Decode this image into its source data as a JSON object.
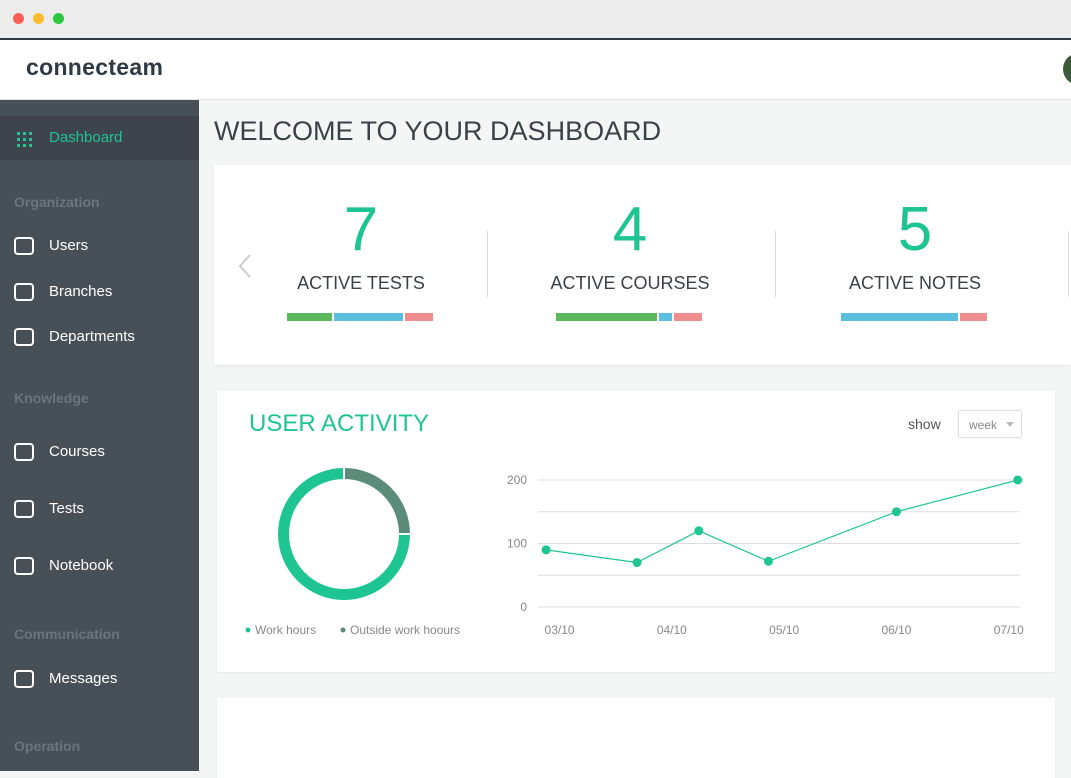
{
  "logo": "connecteam",
  "sidebar": {
    "items": [
      {
        "kind": "item",
        "label": "Dashboard",
        "active": true
      },
      {
        "kind": "section",
        "label": "Organization"
      },
      {
        "kind": "item",
        "label": "Users"
      },
      {
        "kind": "item",
        "label": "Branches"
      },
      {
        "kind": "item",
        "label": "Departments"
      },
      {
        "kind": "section",
        "label": "Knowledge"
      },
      {
        "kind": "item",
        "label": "Courses"
      },
      {
        "kind": "item",
        "label": "Tests"
      },
      {
        "kind": "item",
        "label": "Notebook"
      },
      {
        "kind": "section",
        "label": "Communication"
      },
      {
        "kind": "item",
        "label": "Messages"
      },
      {
        "kind": "section",
        "label": "Operation"
      }
    ]
  },
  "page_title": "WELCOME TO YOUR DASHBOARD",
  "stats": [
    {
      "value": 7,
      "label": "ACTIVE TESTS",
      "segments": [
        46,
        69,
        29
      ]
    },
    {
      "value": 4,
      "label": "ACTIVE COURSES",
      "segments": [
        100,
        15,
        29
      ]
    },
    {
      "value": 5,
      "label": "ACTIVE NOTES",
      "segments": [
        0,
        117,
        29
      ]
    }
  ],
  "segment_colors": [
    "#5cb85c",
    "#5bc0de",
    "#f08d8d"
  ],
  "activity": {
    "title": "USER ACTIVITY",
    "show_label": "show",
    "period": "week"
  },
  "chart_data": [
    {
      "type": "pie",
      "donut": true,
      "categories": [
        "Work hours",
        "Outside work hoours"
      ],
      "values": [
        75,
        25
      ],
      "colors": [
        "#1ec592",
        "#5b8b79"
      ]
    },
    {
      "type": "line",
      "x": [
        -0.12,
        0.69,
        1.24,
        1.86,
        3.0,
        4.08
      ],
      "values": [
        90,
        70,
        120,
        72,
        150,
        200
      ],
      "color": "#1ec592",
      "xlim": [
        -0.37,
        4.1
      ],
      "xticks": [
        {
          "value": 0,
          "label": "03/10"
        },
        {
          "value": 1,
          "label": "04/10"
        },
        {
          "value": 2,
          "label": "05/10"
        },
        {
          "value": 3,
          "label": "06/10"
        },
        {
          "value": 4,
          "label": "07/10"
        }
      ],
      "ylim": [
        0,
        200
      ],
      "yticks": [
        0,
        100,
        200
      ],
      "grid_lines": [
        0,
        50,
        100,
        150,
        200
      ]
    }
  ]
}
